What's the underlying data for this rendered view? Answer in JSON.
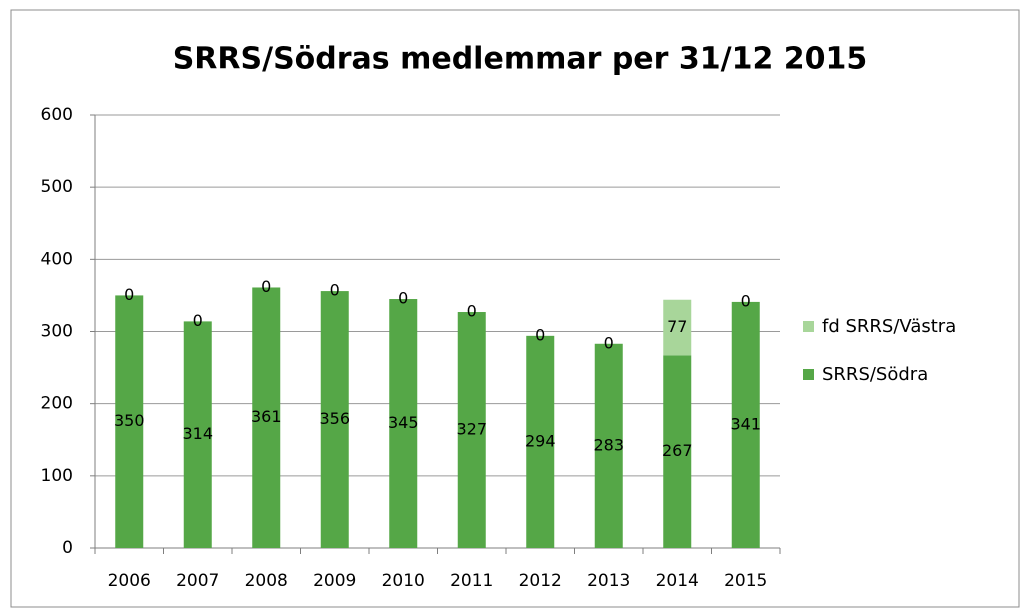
{
  "chart_data": {
    "type": "stacked_bar",
    "title": "SRRS/Södras medlemmar per 31/12 2015",
    "categories": [
      "2006",
      "2007",
      "2008",
      "2009",
      "2010",
      "2011",
      "2012",
      "2013",
      "2014",
      "2015"
    ],
    "series": [
      {
        "name": "SRRS/Södra",
        "color": "#55a747",
        "values": [
          350,
          314,
          361,
          356,
          345,
          327,
          294,
          283,
          267,
          341
        ]
      },
      {
        "name": "fd SRRS/Västra",
        "color": "#a8d69a",
        "values": [
          0,
          0,
          0,
          0,
          0,
          0,
          0,
          0,
          77,
          0
        ]
      }
    ],
    "ylim": [
      0,
      600
    ],
    "yticks": [
      0,
      100,
      200,
      300,
      400,
      500,
      600
    ],
    "grid": true,
    "legend": "right"
  }
}
